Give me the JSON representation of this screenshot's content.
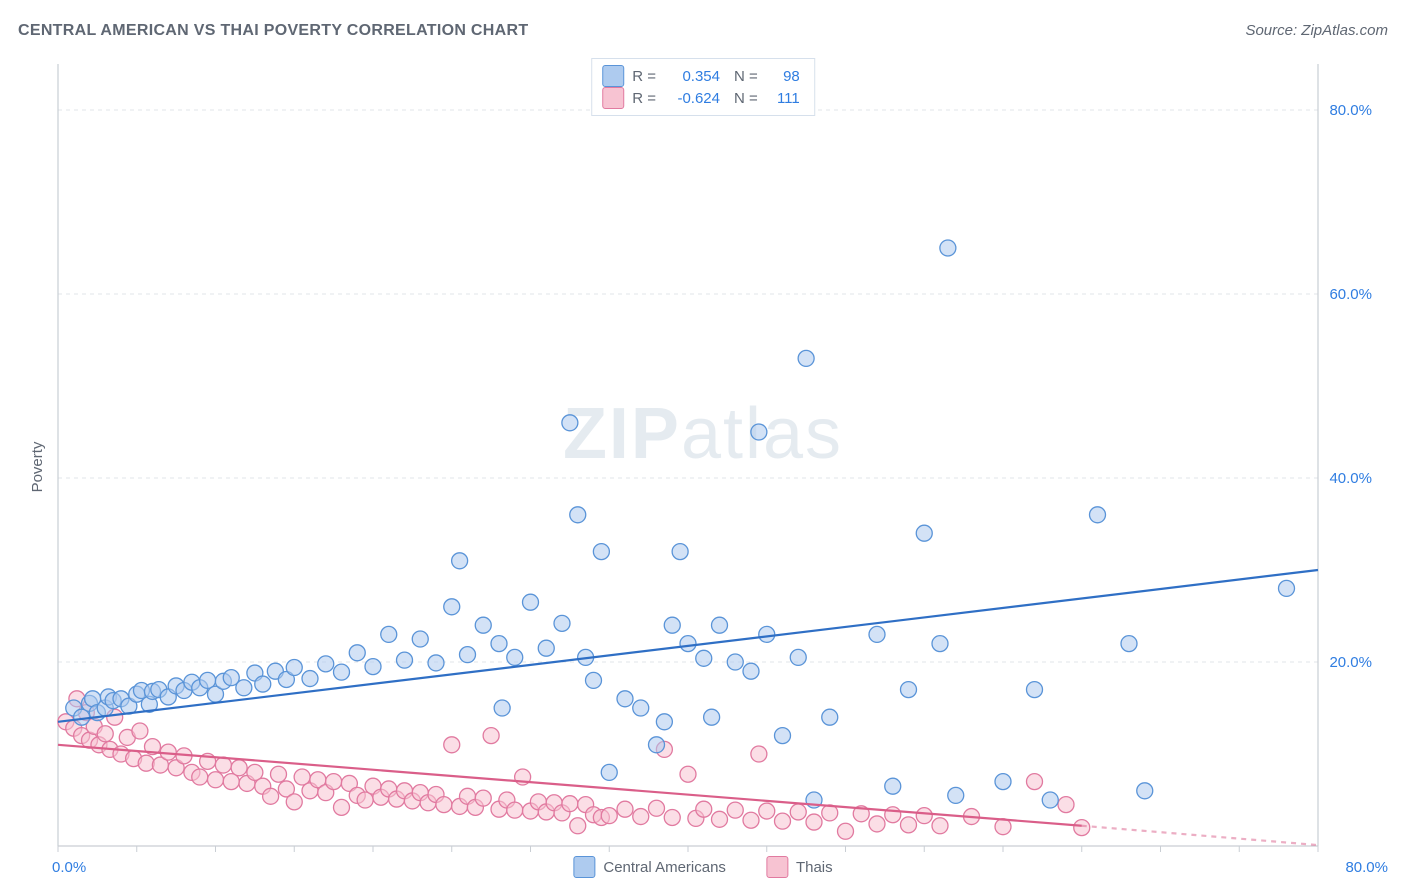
{
  "title": "CENTRAL AMERICAN VS THAI POVERTY CORRELATION CHART",
  "source": "Source: ZipAtlas.com",
  "y_axis_title": "Poverty",
  "watermark_zip": "ZIP",
  "watermark_atlas": "atlas",
  "chart": {
    "type": "scatter",
    "xlim": [
      0,
      80
    ],
    "ylim": [
      0,
      85
    ],
    "y_ticks": [
      20,
      40,
      60,
      80
    ],
    "y_tick_labels": [
      "20.0%",
      "40.0%",
      "60.0%",
      "80.0%"
    ],
    "x_min_label": "0.0%",
    "x_max_label": "80.0%",
    "grid_color": "#e2e6ea",
    "axis_color": "#c9ced4",
    "background": "#ffffff",
    "tick_label_color": "#2f7de1",
    "marker_radius": 8,
    "marker_stroke_width": 1.3,
    "series": [
      {
        "key": "central_americans",
        "label": "Central Americans",
        "fill": "#aecbef",
        "fill_opacity": 0.55,
        "stroke": "#5a94d8",
        "trend_color": "#2f6fc5",
        "trend_width": 2.2,
        "trend": {
          "x1": 0,
          "y1": 13.5,
          "x2": 80,
          "y2": 30
        },
        "swatch_fill": "#aecbef",
        "swatch_border": "#5a94d8",
        "R_label": "R =",
        "R": "0.354",
        "N_label": "N =",
        "N": "98",
        "points": [
          [
            1,
            15
          ],
          [
            1.5,
            14
          ],
          [
            2,
            15.5
          ],
          [
            2.2,
            16
          ],
          [
            2.5,
            14.5
          ],
          [
            3,
            15
          ],
          [
            3.2,
            16.2
          ],
          [
            3.5,
            15.8
          ],
          [
            4,
            16
          ],
          [
            4.5,
            15.2
          ],
          [
            5,
            16.5
          ],
          [
            5.3,
            16.9
          ],
          [
            5.8,
            15.4
          ],
          [
            6,
            16.8
          ],
          [
            6.4,
            17
          ],
          [
            7,
            16.2
          ],
          [
            7.5,
            17.4
          ],
          [
            8,
            16.9
          ],
          [
            8.5,
            17.8
          ],
          [
            9,
            17.2
          ],
          [
            9.5,
            18
          ],
          [
            10,
            16.5
          ],
          [
            10.5,
            17.9
          ],
          [
            11,
            18.3
          ],
          [
            11.8,
            17.2
          ],
          [
            12.5,
            18.8
          ],
          [
            13,
            17.6
          ],
          [
            13.8,
            19
          ],
          [
            14.5,
            18.1
          ],
          [
            15,
            19.4
          ],
          [
            16,
            18.2
          ],
          [
            17,
            19.8
          ],
          [
            18,
            18.9
          ],
          [
            19,
            21
          ],
          [
            20,
            19.5
          ],
          [
            21,
            23
          ],
          [
            22,
            20.2
          ],
          [
            23,
            22.5
          ],
          [
            24,
            19.9
          ],
          [
            25,
            26
          ],
          [
            25.5,
            31
          ],
          [
            26,
            20.8
          ],
          [
            27,
            24
          ],
          [
            28,
            22
          ],
          [
            28.2,
            15
          ],
          [
            29,
            20.5
          ],
          [
            30,
            26.5
          ],
          [
            31,
            21.5
          ],
          [
            32,
            24.2
          ],
          [
            32.5,
            46
          ],
          [
            33,
            36
          ],
          [
            33.5,
            20.5
          ],
          [
            34,
            18
          ],
          [
            34.5,
            32
          ],
          [
            35,
            8
          ],
          [
            36,
            16
          ],
          [
            37,
            15
          ],
          [
            38,
            11
          ],
          [
            38.5,
            13.5
          ],
          [
            39,
            24
          ],
          [
            39.5,
            32
          ],
          [
            40,
            22
          ],
          [
            41,
            20.4
          ],
          [
            41.5,
            14
          ],
          [
            42,
            24
          ],
          [
            43,
            20
          ],
          [
            44,
            19
          ],
          [
            44.5,
            45
          ],
          [
            45,
            23
          ],
          [
            46,
            12
          ],
          [
            47,
            20.5
          ],
          [
            47.5,
            53
          ],
          [
            48,
            5
          ],
          [
            49,
            14
          ],
          [
            52,
            23
          ],
          [
            53,
            6.5
          ],
          [
            54,
            17
          ],
          [
            55,
            34
          ],
          [
            56,
            22
          ],
          [
            57,
            5.5
          ],
          [
            60,
            7
          ],
          [
            62,
            17
          ],
          [
            63,
            5
          ],
          [
            56.5,
            65
          ],
          [
            66,
            36
          ],
          [
            68,
            22
          ],
          [
            69,
            6
          ],
          [
            78,
            28
          ]
        ]
      },
      {
        "key": "thais",
        "label": "Thais",
        "fill": "#f7c3d2",
        "fill_opacity": 0.55,
        "stroke": "#e17aa0",
        "trend_color": "#da5e89",
        "trend_width": 2.2,
        "trend": {
          "x1": 0,
          "y1": 11,
          "x2": 65,
          "y2": 2.2
        },
        "trend_dash_ext": {
          "x1": 65,
          "y1": 2.2,
          "x2": 80,
          "y2": 0.1
        },
        "swatch_fill": "#f7c3d2",
        "swatch_border": "#e17aa0",
        "R_label": "R =",
        "R": "-0.624",
        "N_label": "N =",
        "N": "111",
        "points": [
          [
            0.5,
            13.5
          ],
          [
            1,
            12.8
          ],
          [
            1.2,
            16
          ],
          [
            1.5,
            12
          ],
          [
            1.8,
            14.5
          ],
          [
            2,
            11.5
          ],
          [
            2.3,
            13
          ],
          [
            2.6,
            11
          ],
          [
            3,
            12.2
          ],
          [
            3.3,
            10.5
          ],
          [
            3.6,
            14
          ],
          [
            4,
            10
          ],
          [
            4.4,
            11.8
          ],
          [
            4.8,
            9.5
          ],
          [
            5.2,
            12.5
          ],
          [
            5.6,
            9
          ],
          [
            6,
            10.8
          ],
          [
            6.5,
            8.8
          ],
          [
            7,
            10.2
          ],
          [
            7.5,
            8.5
          ],
          [
            8,
            9.8
          ],
          [
            8.5,
            8
          ],
          [
            9,
            7.5
          ],
          [
            9.5,
            9.2
          ],
          [
            10,
            7.2
          ],
          [
            10.5,
            8.8
          ],
          [
            11,
            7
          ],
          [
            11.5,
            8.5
          ],
          [
            12,
            6.8
          ],
          [
            12.5,
            8
          ],
          [
            13,
            6.5
          ],
          [
            13.5,
            5.4
          ],
          [
            14,
            7.8
          ],
          [
            14.5,
            6.2
          ],
          [
            15,
            4.8
          ],
          [
            15.5,
            7.5
          ],
          [
            16,
            6
          ],
          [
            16.5,
            7.2
          ],
          [
            17,
            5.8
          ],
          [
            17.5,
            7
          ],
          [
            18,
            4.2
          ],
          [
            18.5,
            6.8
          ],
          [
            19,
            5.5
          ],
          [
            19.5,
            5
          ],
          [
            20,
            6.5
          ],
          [
            20.5,
            5.3
          ],
          [
            21,
            6.2
          ],
          [
            21.5,
            5.1
          ],
          [
            22,
            6
          ],
          [
            22.5,
            4.9
          ],
          [
            23,
            5.8
          ],
          [
            23.5,
            4.7
          ],
          [
            24,
            5.6
          ],
          [
            24.5,
            4.5
          ],
          [
            25,
            11
          ],
          [
            25.5,
            4.3
          ],
          [
            26,
            5.4
          ],
          [
            26.5,
            4.2
          ],
          [
            27,
            5.2
          ],
          [
            27.5,
            12
          ],
          [
            28,
            4
          ],
          [
            28.5,
            5
          ],
          [
            29,
            3.9
          ],
          [
            29.5,
            7.5
          ],
          [
            30,
            3.8
          ],
          [
            30.5,
            4.8
          ],
          [
            31,
            3.7
          ],
          [
            31.5,
            4.7
          ],
          [
            32,
            3.6
          ],
          [
            32.5,
            4.6
          ],
          [
            33,
            2.2
          ],
          [
            33.5,
            4.5
          ],
          [
            34,
            3.4
          ],
          [
            34.5,
            3.1
          ],
          [
            35,
            3.3
          ],
          [
            36,
            4
          ],
          [
            37,
            3.2
          ],
          [
            38,
            4.1
          ],
          [
            38.5,
            10.5
          ],
          [
            39,
            3.1
          ],
          [
            40,
            7.8
          ],
          [
            40.5,
            3
          ],
          [
            41,
            4
          ],
          [
            42,
            2.9
          ],
          [
            43,
            3.9
          ],
          [
            44,
            2.8
          ],
          [
            44.5,
            10
          ],
          [
            45,
            3.8
          ],
          [
            46,
            2.7
          ],
          [
            47,
            3.7
          ],
          [
            48,
            2.6
          ],
          [
            49,
            3.6
          ],
          [
            50,
            1.6
          ],
          [
            51,
            3.5
          ],
          [
            52,
            2.4
          ],
          [
            53,
            3.4
          ],
          [
            54,
            2.3
          ],
          [
            55,
            3.3
          ],
          [
            56,
            2.2
          ],
          [
            58,
            3.2
          ],
          [
            60,
            2.1
          ],
          [
            62,
            7
          ],
          [
            64,
            4.5
          ],
          [
            65,
            2
          ]
        ]
      }
    ]
  },
  "bottom_legend": {
    "items": [
      {
        "key": "central_americans"
      },
      {
        "key": "thais"
      }
    ]
  }
}
